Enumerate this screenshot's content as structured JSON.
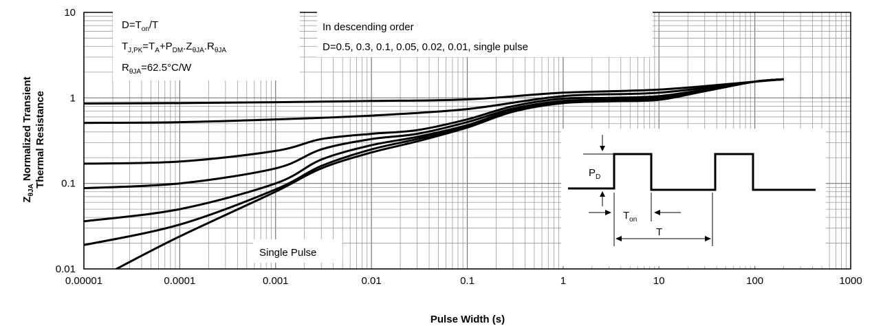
{
  "chart_data": {
    "type": "line",
    "x_scale": "log",
    "y_scale": "log",
    "xlim": [
      1e-05,
      1000
    ],
    "ylim": [
      0.01,
      10
    ],
    "grid": true,
    "xlabel": "Pulse Width (s)",
    "ylabel": {
      "z": "Z",
      "sub": "θJA",
      "line1_rest": " Normalized Transient",
      "line2": "Thermal Resistance"
    },
    "x_ticks": [
      {
        "value": 1e-05,
        "label": "0.00001"
      },
      {
        "value": 0.0001,
        "label": "0.0001"
      },
      {
        "value": 0.001,
        "label": "0.001"
      },
      {
        "value": 0.01,
        "label": "0.01"
      },
      {
        "value": 0.1,
        "label": "0.1"
      },
      {
        "value": 1,
        "label": "1"
      },
      {
        "value": 10,
        "label": "10"
      },
      {
        "value": 100,
        "label": "100"
      },
      {
        "value": 1000,
        "label": "1000"
      }
    ],
    "y_ticks": [
      {
        "value": 0.01,
        "label": "0.01"
      },
      {
        "value": 0.1,
        "label": "0.1"
      },
      {
        "value": 1,
        "label": "1"
      },
      {
        "value": 10,
        "label": "10"
      }
    ],
    "series": [
      {
        "x": [
          1e-05,
          0.0001,
          0.001,
          0.01,
          0.1,
          1,
          10,
          100,
          200
        ],
        "y": [
          0.86,
          0.87,
          0.89,
          0.92,
          0.96,
          1.15,
          1.25,
          1.55,
          1.65
        ]
      },
      {
        "x": [
          1e-05,
          0.0001,
          0.001,
          0.01,
          0.1,
          1,
          10,
          100,
          200
        ],
        "y": [
          0.51,
          0.52,
          0.56,
          0.62,
          0.74,
          1.05,
          1.15,
          1.55,
          1.65
        ]
      },
      {
        "x": [
          1e-05,
          0.0001,
          0.001,
          0.003,
          0.01,
          0.03,
          0.1,
          0.3,
          1,
          3,
          10,
          30,
          100,
          200
        ],
        "y": [
          0.17,
          0.18,
          0.24,
          0.33,
          0.38,
          0.42,
          0.56,
          0.8,
          0.98,
          1.0,
          1.05,
          1.25,
          1.55,
          1.65
        ]
      },
      {
        "x": [
          1e-05,
          0.0001,
          0.001,
          0.003,
          0.01,
          0.03,
          0.1,
          0.3,
          1,
          3,
          10,
          30,
          100,
          200
        ],
        "y": [
          0.088,
          0.1,
          0.15,
          0.25,
          0.33,
          0.38,
          0.52,
          0.75,
          0.92,
          0.95,
          1.0,
          1.22,
          1.55,
          1.65
        ]
      },
      {
        "x": [
          1e-05,
          0.0001,
          0.001,
          0.003,
          0.01,
          0.03,
          0.1,
          0.3,
          1,
          3,
          10,
          30,
          100,
          200
        ],
        "y": [
          0.036,
          0.05,
          0.1,
          0.19,
          0.28,
          0.35,
          0.48,
          0.72,
          0.9,
          0.93,
          0.97,
          1.2,
          1.55,
          1.65
        ]
      },
      {
        "x": [
          1e-05,
          0.0001,
          0.001,
          0.003,
          0.01,
          0.03,
          0.1,
          0.3,
          1,
          3,
          10,
          30,
          100,
          200
        ],
        "y": [
          0.019,
          0.033,
          0.085,
          0.16,
          0.25,
          0.33,
          0.46,
          0.7,
          0.88,
          0.92,
          0.96,
          1.2,
          1.55,
          1.65
        ]
      },
      {
        "x": [
          2e-05,
          0.0001,
          0.001,
          0.003,
          0.01,
          0.03,
          0.1,
          0.3,
          1,
          3,
          10,
          30,
          100,
          200
        ],
        "y": [
          0.0095,
          0.024,
          0.08,
          0.15,
          0.23,
          0.31,
          0.45,
          0.69,
          0.87,
          0.91,
          0.95,
          1.2,
          1.55,
          1.65
        ]
      }
    ],
    "annotations": {
      "box1": {
        "line1": {
          "main": "D=T",
          "sub": "on",
          "rest": "/T"
        },
        "line2": {
          "t": "T",
          "t_sub": "J,PK",
          "mid": "=T",
          "a_sub": "A",
          "plus": "+P",
          "dm_sub": "DM",
          "dot": ".Z",
          "z_sub": "θJA",
          "dot2": ".R",
          "r_sub": "θJA"
        },
        "line3": {
          "main": "R",
          "sub": "θJA",
          "rest": "=62.5°C/W"
        }
      },
      "box2": {
        "line1": "In descending order",
        "line2": "D=0.5, 0.3, 0.1, 0.05, 0.02, 0.01, single pulse"
      },
      "single_pulse": "Single Pulse"
    },
    "inset": {
      "pd_label": "P",
      "pd_sub": "D",
      "ton_label": "T",
      "ton_sub": "on",
      "t_label": "T"
    }
  }
}
